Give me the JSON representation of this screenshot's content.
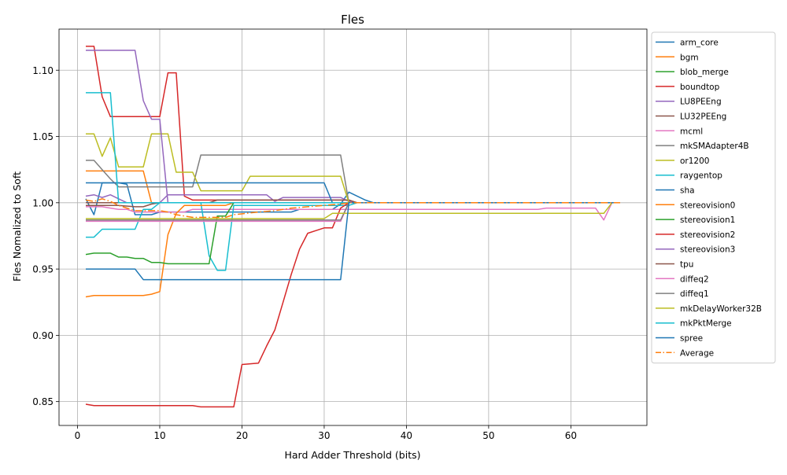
{
  "chart_data": {
    "type": "line",
    "title": "Fles",
    "xlabel": "Hard Adder Threshold (bits)",
    "ylabel": "Fles Nomalized to Soft",
    "xlim": [
      -2.25,
      69.25
    ],
    "ylim": [
      0.832,
      1.131
    ],
    "xticks": [
      0,
      10,
      20,
      30,
      40,
      50,
      60
    ],
    "yticks": [
      0.85,
      0.9,
      0.95,
      1.0,
      1.05,
      1.1
    ],
    "ytick_labels": [
      "0.85",
      "0.90",
      "0.95",
      "1.00",
      "1.05",
      "1.10"
    ],
    "grid": true,
    "legend_position": "outside-right",
    "series": [
      {
        "name": "arm_core",
        "color": "#1f77b4",
        "style": "solid",
        "points": [
          [
            1,
            1.003
          ],
          [
            2,
            0.991
          ],
          [
            3,
            1.015
          ],
          [
            4,
            1.015
          ],
          [
            5,
            1.015
          ],
          [
            6,
            1.014
          ],
          [
            7,
            0.991
          ],
          [
            8,
            0.991
          ],
          [
            9,
            0.991
          ],
          [
            10,
            0.993
          ],
          [
            12,
            0.993
          ],
          [
            25,
            0.993
          ],
          [
            26,
            0.993
          ],
          [
            27,
            0.995
          ],
          [
            31,
            0.995
          ],
          [
            32,
            0.999
          ],
          [
            33,
            1.008
          ],
          [
            35,
            1.002
          ],
          [
            36,
            1.0
          ],
          [
            66,
            1.0
          ]
        ]
      },
      {
        "name": "bgm",
        "color": "#ff7f0e",
        "style": "solid",
        "points": [
          [
            1,
            1.024
          ],
          [
            8,
            1.024
          ],
          [
            9,
            1.0
          ],
          [
            10,
            1.0
          ],
          [
            66,
            1.0
          ]
        ]
      },
      {
        "name": "blob_merge",
        "color": "#2ca02c",
        "style": "solid",
        "points": [
          [
            1,
            1.0
          ],
          [
            3,
            1.0
          ],
          [
            4,
            1.0
          ],
          [
            66,
            1.0
          ]
        ]
      },
      {
        "name": "boundtop",
        "color": "#d62728",
        "style": "solid",
        "points": [
          [
            1,
            1.118
          ],
          [
            2,
            1.118
          ],
          [
            3,
            1.08
          ],
          [
            4,
            1.065
          ],
          [
            10,
            1.065
          ],
          [
            11,
            1.098
          ],
          [
            12,
            1.098
          ],
          [
            13,
            1.005
          ],
          [
            14,
            1.002
          ],
          [
            33,
            1.002
          ],
          [
            34,
            1.0
          ],
          [
            66,
            1.0
          ]
        ]
      },
      {
        "name": "LU8PEEng",
        "color": "#9467bd",
        "style": "solid",
        "points": [
          [
            1,
            1.005
          ],
          [
            2,
            1.006
          ],
          [
            3,
            1.004
          ],
          [
            4,
            1.006
          ],
          [
            5,
            1.003
          ],
          [
            6,
            1.0
          ],
          [
            7,
            1.0
          ],
          [
            8,
            1.0
          ],
          [
            9,
            1.0
          ],
          [
            10,
            1.0
          ],
          [
            11,
            1.006
          ],
          [
            23,
            1.006
          ],
          [
            24,
            1.001
          ],
          [
            25,
            1.004
          ],
          [
            32,
            1.004
          ],
          [
            33,
            1.001
          ],
          [
            34,
            1.0
          ],
          [
            66,
            1.0
          ]
        ]
      },
      {
        "name": "LU32PEEng",
        "color": "#8c564b",
        "style": "solid",
        "points": [
          [
            1,
            0.998
          ],
          [
            5,
            0.998
          ],
          [
            7,
            0.997
          ],
          [
            8,
            0.997
          ],
          [
            9,
            0.999
          ],
          [
            10,
            1.0
          ],
          [
            16,
            1.0
          ],
          [
            17,
            1.002
          ],
          [
            33,
            1.002
          ],
          [
            34,
            1.0
          ],
          [
            66,
            1.0
          ]
        ]
      },
      {
        "name": "mcml",
        "color": "#e377c2",
        "style": "solid",
        "points": [
          [
            1,
            0.997
          ],
          [
            3,
            0.997
          ],
          [
            4,
            0.996
          ],
          [
            5,
            0.995
          ],
          [
            6,
            0.995
          ],
          [
            7,
            0.993
          ],
          [
            13,
            0.993
          ],
          [
            14,
            0.995
          ],
          [
            33,
            0.995
          ],
          [
            55,
            0.995
          ],
          [
            56,
            0.995
          ],
          [
            57,
            0.996
          ],
          [
            63,
            0.996
          ],
          [
            64,
            0.987
          ],
          [
            65,
            1.0
          ],
          [
            66,
            1.0
          ]
        ]
      },
      {
        "name": "mkSMAdapter4B",
        "color": "#7f7f7f",
        "style": "solid",
        "points": [
          [
            1,
            1.032
          ],
          [
            2,
            1.032
          ],
          [
            3,
            1.025
          ],
          [
            4,
            1.018
          ],
          [
            5,
            1.012
          ],
          [
            14,
            1.012
          ],
          [
            15,
            1.036
          ],
          [
            32,
            1.036
          ],
          [
            33,
            1.0
          ],
          [
            66,
            1.0
          ]
        ]
      },
      {
        "name": "or1200",
        "color": "#bcbd22",
        "style": "solid",
        "points": [
          [
            1,
            1.052
          ],
          [
            2,
            1.052
          ],
          [
            3,
            1.035
          ],
          [
            4,
            1.049
          ],
          [
            5,
            1.027
          ],
          [
            8,
            1.027
          ],
          [
            9,
            1.052
          ],
          [
            11,
            1.052
          ],
          [
            12,
            1.023
          ],
          [
            14,
            1.023
          ],
          [
            15,
            1.009
          ],
          [
            20,
            1.009
          ],
          [
            21,
            1.02
          ],
          [
            32,
            1.02
          ],
          [
            33,
            1.0
          ],
          [
            66,
            1.0
          ]
        ]
      },
      {
        "name": "raygentop",
        "color": "#17becf",
        "style": "solid",
        "points": [
          [
            1,
            0.974
          ],
          [
            2,
            0.974
          ],
          [
            3,
            0.98
          ],
          [
            7,
            0.98
          ],
          [
            8,
            0.995
          ],
          [
            9,
            0.995
          ],
          [
            10,
            1.0
          ],
          [
            14,
            1.0
          ],
          [
            15,
            1.0
          ],
          [
            16,
            0.96
          ],
          [
            17,
            0.949
          ],
          [
            18,
            0.949
          ],
          [
            19,
            0.998
          ],
          [
            33,
            0.998
          ],
          [
            34,
            1.0
          ],
          [
            66,
            1.0
          ]
        ]
      },
      {
        "name": "sha",
        "color": "#1f77b4",
        "style": "solid",
        "points": [
          [
            1,
            1.015
          ],
          [
            30,
            1.015
          ],
          [
            31,
            1.0
          ],
          [
            66,
            1.0
          ]
        ]
      },
      {
        "name": "stereovision0",
        "color": "#ff7f0e",
        "style": "solid",
        "points": [
          [
            1,
            0.929
          ],
          [
            2,
            0.93
          ],
          [
            8,
            0.93
          ],
          [
            9,
            0.931
          ],
          [
            10,
            0.933
          ],
          [
            11,
            0.976
          ],
          [
            12,
            0.992
          ],
          [
            13,
            0.998
          ],
          [
            18,
            0.998
          ],
          [
            19,
            1.0
          ],
          [
            66,
            1.0
          ]
        ]
      },
      {
        "name": "stereovision1",
        "color": "#2ca02c",
        "style": "solid",
        "points": [
          [
            1,
            0.961
          ],
          [
            2,
            0.962
          ],
          [
            4,
            0.962
          ],
          [
            5,
            0.959
          ],
          [
            6,
            0.959
          ],
          [
            7,
            0.958
          ],
          [
            8,
            0.958
          ],
          [
            9,
            0.955
          ],
          [
            10,
            0.955
          ],
          [
            11,
            0.954
          ],
          [
            16,
            0.954
          ],
          [
            17,
            0.99
          ],
          [
            18,
            0.99
          ],
          [
            19,
            1.0
          ],
          [
            66,
            1.0
          ]
        ]
      },
      {
        "name": "stereovision2",
        "color": "#d62728",
        "style": "solid",
        "points": [
          [
            1,
            0.848
          ],
          [
            2,
            0.847
          ],
          [
            8,
            0.847
          ],
          [
            9,
            0.847
          ],
          [
            10,
            0.847
          ],
          [
            11,
            0.847
          ],
          [
            14,
            0.847
          ],
          [
            15,
            0.846
          ],
          [
            19,
            0.846
          ],
          [
            20,
            0.878
          ],
          [
            22,
            0.879
          ],
          [
            23,
            0.892
          ],
          [
            24,
            0.904
          ],
          [
            25,
            0.925
          ],
          [
            26,
            0.946
          ],
          [
            27,
            0.965
          ],
          [
            28,
            0.977
          ],
          [
            29,
            0.979
          ],
          [
            30,
            0.981
          ],
          [
            31,
            0.981
          ],
          [
            32,
            0.996
          ],
          [
            33,
            1.0
          ],
          [
            66,
            1.0
          ]
        ]
      },
      {
        "name": "stereovision3",
        "color": "#9467bd",
        "style": "solid",
        "points": [
          [
            1,
            1.115
          ],
          [
            7,
            1.115
          ],
          [
            8,
            1.077
          ],
          [
            9,
            1.063
          ],
          [
            10,
            1.063
          ],
          [
            11,
            1.0
          ],
          [
            66,
            1.0
          ]
        ]
      },
      {
        "name": "tpu",
        "color": "#8c564b",
        "style": "solid",
        "points": [
          [
            1,
            1.0
          ],
          [
            66,
            1.0
          ]
        ]
      },
      {
        "name": "diffeq2",
        "color": "#e377c2",
        "style": "solid",
        "points": [
          [
            1,
            0.986
          ],
          [
            32,
            0.986
          ],
          [
            33,
            1.0
          ],
          [
            66,
            1.0
          ]
        ]
      },
      {
        "name": "diffeq1",
        "color": "#7f7f7f",
        "style": "solid",
        "points": [
          [
            1,
            0.987
          ],
          [
            32,
            0.987
          ],
          [
            33,
            1.0
          ],
          [
            66,
            1.0
          ]
        ]
      },
      {
        "name": "mkDelayWorker32B",
        "color": "#bcbd22",
        "style": "solid",
        "points": [
          [
            1,
            0.988
          ],
          [
            30,
            0.988
          ],
          [
            31,
            0.992
          ],
          [
            63,
            0.992
          ],
          [
            64,
            0.992
          ],
          [
            65,
            1.0
          ],
          [
            66,
            1.0
          ]
        ]
      },
      {
        "name": "mkPktMerge",
        "color": "#17becf",
        "style": "solid",
        "points": [
          [
            1,
            1.083
          ],
          [
            4,
            1.083
          ],
          [
            5,
            1.0
          ],
          [
            66,
            1.0
          ]
        ]
      },
      {
        "name": "spree",
        "color": "#1f77b4",
        "style": "solid",
        "points": [
          [
            1,
            0.95
          ],
          [
            7,
            0.95
          ],
          [
            8,
            0.942
          ],
          [
            32,
            0.942
          ],
          [
            33,
            1.0
          ],
          [
            66,
            1.0
          ]
        ]
      },
      {
        "name": "Average",
        "color": "#ff7f0e",
        "style": "dashdot",
        "points": [
          [
            1,
            1.002
          ],
          [
            2,
            1.001
          ],
          [
            3,
            1.003
          ],
          [
            4,
            1.001
          ],
          [
            5,
            0.998
          ],
          [
            6,
            0.996
          ],
          [
            7,
            0.994
          ],
          [
            10,
            0.994
          ],
          [
            11,
            0.993
          ],
          [
            12,
            0.991
          ],
          [
            14,
            0.989
          ],
          [
            18,
            0.989
          ],
          [
            19,
            0.991
          ],
          [
            22,
            0.993
          ],
          [
            24,
            0.994
          ],
          [
            26,
            0.996
          ],
          [
            28,
            0.997
          ],
          [
            30,
            0.998
          ],
          [
            32,
            0.999
          ],
          [
            33,
            1.0
          ],
          [
            66,
            1.0
          ]
        ]
      }
    ]
  }
}
